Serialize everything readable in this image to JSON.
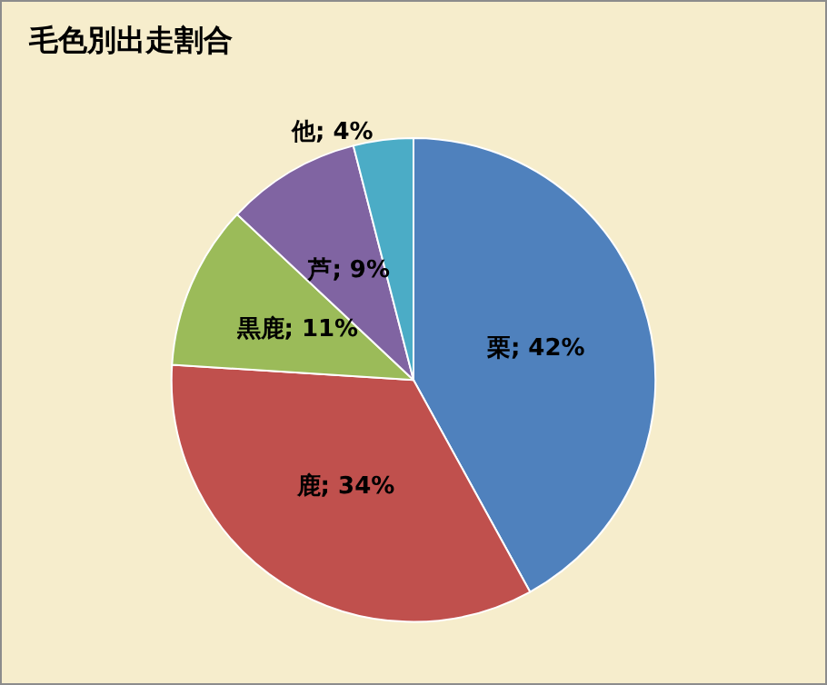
{
  "chart_data": {
    "type": "pie",
    "title": "毛色別出走割合",
    "categories": [
      "栗",
      "鹿",
      "黒鹿",
      "芦",
      "他"
    ],
    "values": [
      42,
      34,
      11,
      9,
      4
    ],
    "colors": [
      "#4f81bd",
      "#c0504d",
      "#9bbb59",
      "#8064a2",
      "#4bacc6"
    ],
    "value_labels": [
      "; 42%",
      "; 34%",
      "; 11%",
      "; 9%",
      "; 4%"
    ],
    "legend": false
  }
}
